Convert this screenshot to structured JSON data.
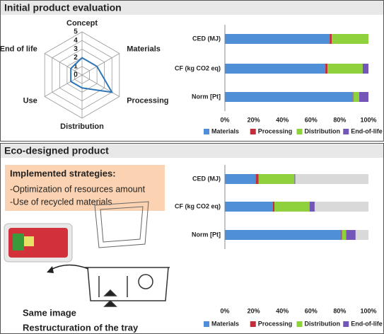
{
  "panels": [
    {
      "title": "Initial product evaluation"
    },
    {
      "title": "Eco-designed product"
    }
  ],
  "strategies": {
    "heading": "Implemented strategies:",
    "items": [
      "-Optimization of resources amount",
      "-Use of recycled materials"
    ]
  },
  "captions": [
    "Same image",
    "Restructuration of the tray"
  ],
  "chart_data": [
    {
      "type": "radar",
      "categories": [
        "Concept",
        "Materials",
        "Processing",
        "Distribution",
        "Use",
        "End of life"
      ],
      "values": [
        2,
        2,
        4,
        1.5,
        1.5,
        1.5
      ],
      "color": "#2e75b6",
      "ylim": [
        0,
        5
      ],
      "yticks": [
        0,
        1,
        2,
        3,
        4,
        5
      ],
      "grid": true
    },
    {
      "type": "bar",
      "orientation": "horizontal",
      "stacked": true,
      "legend": "bottom",
      "categories": [
        "CED (MJ)",
        "CF (kg CO2 eq)",
        "Norm [Pt]"
      ],
      "series": [
        {
          "name": "Materials",
          "color": "#4f8fd8",
          "values": [
            73,
            70,
            89
          ]
        },
        {
          "name": "Processing",
          "color": "#c0303a",
          "values": [
            1.5,
            1.5,
            0.5
          ]
        },
        {
          "name": "Distribution",
          "color": "#8ed13d",
          "values": [
            25.5,
            24.5,
            4
          ]
        },
        {
          "name": "End-of-life",
          "color": "#7356b8",
          "values": [
            0,
            4,
            6.5
          ]
        }
      ],
      "xlim": [
        0,
        100
      ],
      "xticks": [
        {
          "value": 0,
          "label": "0%"
        },
        {
          "value": 20,
          "label": "20%"
        },
        {
          "value": 40,
          "label": "40%"
        },
        {
          "value": 60,
          "label": "60%"
        },
        {
          "value": 80,
          "label": "80%"
        },
        {
          "value": 100,
          "label": "100%"
        }
      ]
    },
    {
      "type": "bar",
      "orientation": "horizontal",
      "stacked": true,
      "legend": "bottom",
      "categories": [
        "CED (MJ)",
        "CF (kg CO2 eq)",
        "Norm [Pt]"
      ],
      "series": [
        {
          "name": "Materials",
          "color": "#4f8fd8",
          "values": [
            21.5,
            33.5,
            81
          ]
        },
        {
          "name": "Processing",
          "color": "#c0303a",
          "values": [
            2,
            1,
            0.5
          ]
        },
        {
          "name": "Distribution",
          "color": "#8ed13d",
          "values": [
            25,
            24.5,
            3
          ]
        },
        {
          "name": "End-of-life",
          "color": "#7356b8",
          "values": [
            0.5,
            3.5,
            6.5
          ]
        }
      ],
      "xlim": [
        0,
        100
      ],
      "xticks": [
        {
          "value": 0,
          "label": "0%"
        },
        {
          "value": 20,
          "label": "20%"
        },
        {
          "value": 40,
          "label": "40%"
        },
        {
          "value": 60,
          "label": "60%"
        },
        {
          "value": 80,
          "label": "80%"
        },
        {
          "value": 100,
          "label": "100%"
        }
      ]
    }
  ]
}
